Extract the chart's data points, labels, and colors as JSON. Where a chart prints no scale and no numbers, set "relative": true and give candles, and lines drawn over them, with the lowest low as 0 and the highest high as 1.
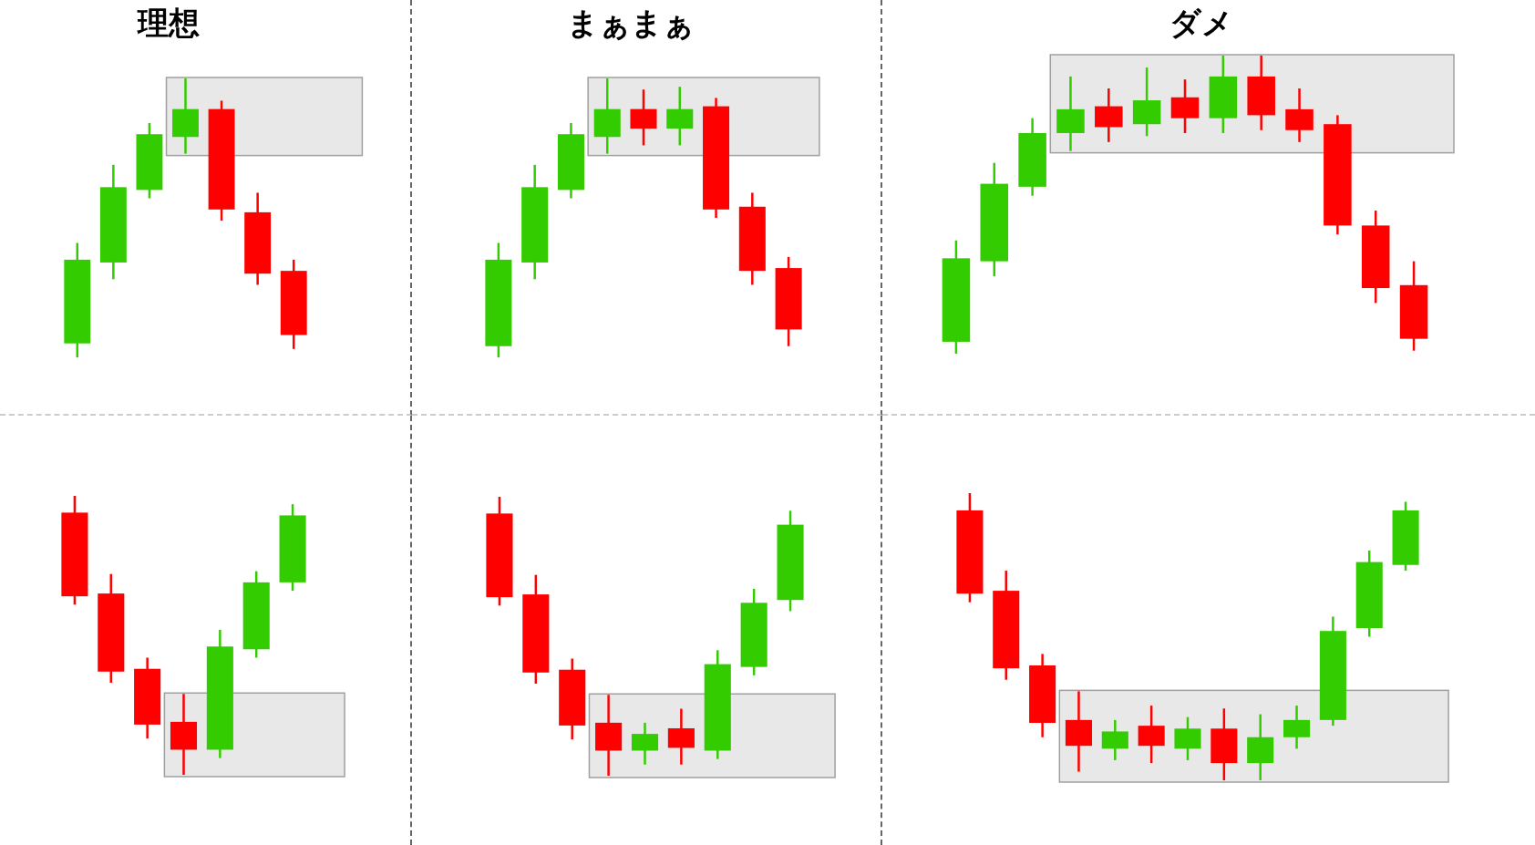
{
  "chart_data": [
    {
      "type": "candlestick",
      "title": "理想",
      "relative": true,
      "categories": [
        null,
        null,
        null,
        null,
        null,
        null,
        null
      ],
      "ohlc": [
        [
          0.05,
          0.41,
          0,
          0.35
        ],
        [
          0.34,
          0.69,
          0.28,
          0.61
        ],
        [
          0.6,
          0.84,
          0.57,
          0.8
        ],
        [
          0.79,
          1,
          0.73,
          0.89
        ],
        [
          0.89,
          0.92,
          0.49,
          0.53
        ],
        [
          0.52,
          0.59,
          0.26,
          0.3
        ],
        [
          0.31,
          0.35,
          0.03,
          0.08
        ]
      ],
      "colors": [
        "#33cc00",
        "#33cc00",
        "#33cc00",
        "#33cc00",
        "#ff0000",
        "#ff0000",
        "#ff0000"
      ]
    },
    {
      "type": "candlestick",
      "title": "まぁまぁ",
      "relative": true,
      "categories": [
        null,
        null,
        null,
        null,
        null,
        null,
        null,
        null,
        null
      ],
      "ohlc": [
        [
          0.04,
          0.41,
          0,
          0.35
        ],
        [
          0.34,
          0.69,
          0.28,
          0.61
        ],
        [
          0.6,
          0.84,
          0.57,
          0.8
        ],
        [
          0.79,
          1,
          0.73,
          0.89
        ],
        [
          0.89,
          0.96,
          0.76,
          0.82
        ],
        [
          0.82,
          0.97,
          0.76,
          0.89
        ],
        [
          0.9,
          0.93,
          0.5,
          0.53
        ],
        [
          0.54,
          0.59,
          0.26,
          0.31
        ],
        [
          0.32,
          0.36,
          0.04,
          0.1
        ]
      ],
      "colors": [
        "#33cc00",
        "#33cc00",
        "#33cc00",
        "#33cc00",
        "#ff0000",
        "#33cc00",
        "#ff0000",
        "#ff0000",
        "#ff0000"
      ]
    },
    {
      "type": "candlestick",
      "title": "ダメ",
      "relative": true,
      "categories": [
        null,
        null,
        null,
        null,
        null,
        null,
        null,
        null,
        null,
        null,
        null,
        null,
        null
      ],
      "ohlc": [
        [
          0.04,
          0.38,
          0,
          0.32
        ],
        [
          0.31,
          0.64,
          0.26,
          0.57
        ],
        [
          0.56,
          0.79,
          0.53,
          0.74
        ],
        [
          0.74,
          0.93,
          0.68,
          0.82
        ],
        [
          0.83,
          0.89,
          0.71,
          0.76
        ],
        [
          0.77,
          0.96,
          0.73,
          0.85
        ],
        [
          0.86,
          0.92,
          0.74,
          0.79
        ],
        [
          0.79,
          1,
          0.74,
          0.93
        ],
        [
          0.93,
          1,
          0.75,
          0.8
        ],
        [
          0.82,
          0.89,
          0.71,
          0.75
        ],
        [
          0.77,
          0.8,
          0.4,
          0.43
        ],
        [
          0.43,
          0.48,
          0.17,
          0.22
        ],
        [
          0.23,
          0.31,
          0.01,
          0.05
        ]
      ],
      "colors": [
        "#33cc00",
        "#33cc00",
        "#33cc00",
        "#33cc00",
        "#ff0000",
        "#33cc00",
        "#ff0000",
        "#33cc00",
        "#ff0000",
        "#ff0000",
        "#ff0000",
        "#ff0000",
        "#ff0000"
      ]
    },
    {
      "type": "candlestick",
      "relative": true,
      "categories": [
        null,
        null,
        null,
        null,
        null,
        null,
        null
      ],
      "ohlc": [
        [
          0.94,
          1,
          0.61,
          0.64
        ],
        [
          0.65,
          0.72,
          0.33,
          0.37
        ],
        [
          0.38,
          0.42,
          0.13,
          0.18
        ],
        [
          0.19,
          0.29,
          0,
          0.09
        ],
        [
          0.09,
          0.52,
          0.06,
          0.46
        ],
        [
          0.45,
          0.73,
          0.42,
          0.69
        ],
        [
          0.69,
          0.97,
          0.66,
          0.93
        ]
      ],
      "colors": [
        "#ff0000",
        "#ff0000",
        "#ff0000",
        "#ff0000",
        "#33cc00",
        "#33cc00",
        "#33cc00"
      ]
    },
    {
      "type": "candlestick",
      "relative": true,
      "categories": [
        null,
        null,
        null,
        null,
        null,
        null,
        null,
        null,
        null
      ],
      "ohlc": [
        [
          0.94,
          1,
          0.61,
          0.64
        ],
        [
          0.65,
          0.72,
          0.33,
          0.37
        ],
        [
          0.38,
          0.42,
          0.13,
          0.18
        ],
        [
          0.19,
          0.29,
          0,
          0.09
        ],
        [
          0.09,
          0.19,
          0.04,
          0.15
        ],
        [
          0.17,
          0.24,
          0.04,
          0.1
        ],
        [
          0.09,
          0.45,
          0.06,
          0.4
        ],
        [
          0.39,
          0.67,
          0.36,
          0.62
        ],
        [
          0.63,
          0.95,
          0.59,
          0.9
        ]
      ],
      "colors": [
        "#ff0000",
        "#ff0000",
        "#ff0000",
        "#ff0000",
        "#33cc00",
        "#ff0000",
        "#33cc00",
        "#33cc00",
        "#33cc00"
      ]
    },
    {
      "type": "candlestick",
      "relative": true,
      "categories": [
        null,
        null,
        null,
        null,
        null,
        null,
        null,
        null,
        null,
        null,
        null,
        null,
        null
      ],
      "ohlc": [
        [
          0.94,
          1,
          0.62,
          0.65
        ],
        [
          0.66,
          0.73,
          0.35,
          0.39
        ],
        [
          0.4,
          0.44,
          0.15,
          0.2
        ],
        [
          0.21,
          0.31,
          0.03,
          0.12
        ],
        [
          0.11,
          0.21,
          0.07,
          0.17
        ],
        [
          0.19,
          0.26,
          0.06,
          0.12
        ],
        [
          0.11,
          0.22,
          0.07,
          0.18
        ],
        [
          0.18,
          0.25,
          0,
          0.06
        ],
        [
          0.06,
          0.23,
          0,
          0.15
        ],
        [
          0.15,
          0.26,
          0.11,
          0.21
        ],
        [
          0.21,
          0.57,
          0.19,
          0.52
        ],
        [
          0.53,
          0.8,
          0.5,
          0.76
        ],
        [
          0.75,
          0.97,
          0.73,
          0.94
        ]
      ],
      "colors": [
        "#ff0000",
        "#ff0000",
        "#ff0000",
        "#ff0000",
        "#33cc00",
        "#ff0000",
        "#33cc00",
        "#ff0000",
        "#33cc00",
        "#33cc00",
        "#33cc00",
        "#33cc00",
        "#33cc00"
      ]
    }
  ]
}
